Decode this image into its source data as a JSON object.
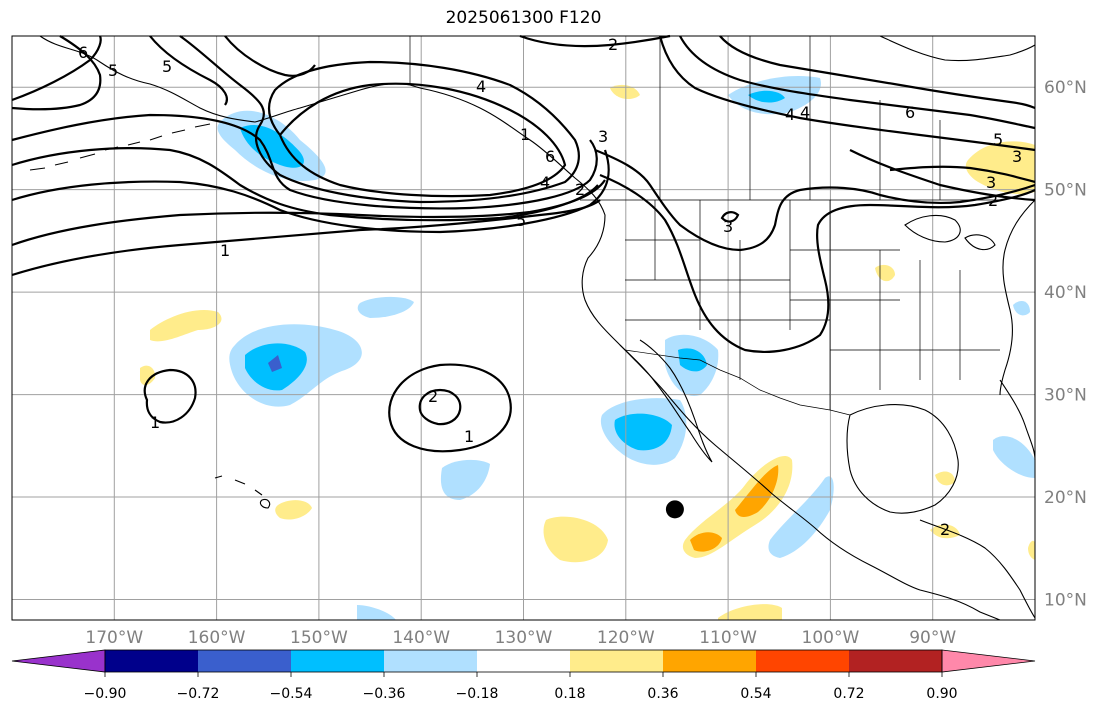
{
  "title": "2025061300 F120",
  "map": {
    "lon_ticks": [
      "170°W",
      "160°W",
      "150°W",
      "140°W",
      "130°W",
      "120°W",
      "110°W",
      "100°W",
      "90°W"
    ],
    "lat_ticks": [
      "60°N",
      "50°N",
      "40°N",
      "30°N",
      "20°N",
      "10°N"
    ],
    "lon_values": [
      -170,
      -160,
      -150,
      -140,
      -130,
      -120,
      -110,
      -100,
      -90
    ],
    "lat_values": [
      60,
      50,
      40,
      30,
      20,
      10
    ],
    "extent": {
      "lon_min": -180,
      "lon_max": -80,
      "lat_min": 8,
      "lat_max": 65
    },
    "grid": true,
    "storm_marker": {
      "lon": -115.2,
      "lat": 18.8
    }
  },
  "contours": {
    "labels": [
      "6",
      "5",
      "4",
      "3",
      "2",
      "1",
      "2",
      "1",
      "1",
      "2",
      "3",
      "4",
      "5",
      "6",
      "5",
      "4",
      "3",
      "2",
      "4",
      "3",
      "1",
      "6",
      "5",
      "2"
    ]
  },
  "colorbar": {
    "tick_labels": [
      "−0.90",
      "−0.72",
      "−0.54",
      "−0.36",
      "−0.18",
      "0.18",
      "0.36",
      "0.54",
      "0.72",
      "0.90"
    ],
    "colors": [
      "#9932cc",
      "#00008b",
      "#3a5fcd",
      "#00bfff",
      "#b0e0ff",
      "#ffffff",
      "#ffec8b",
      "#ffa500",
      "#ff4500",
      "#b22222",
      "#ff88aa"
    ],
    "extend": "both"
  }
}
